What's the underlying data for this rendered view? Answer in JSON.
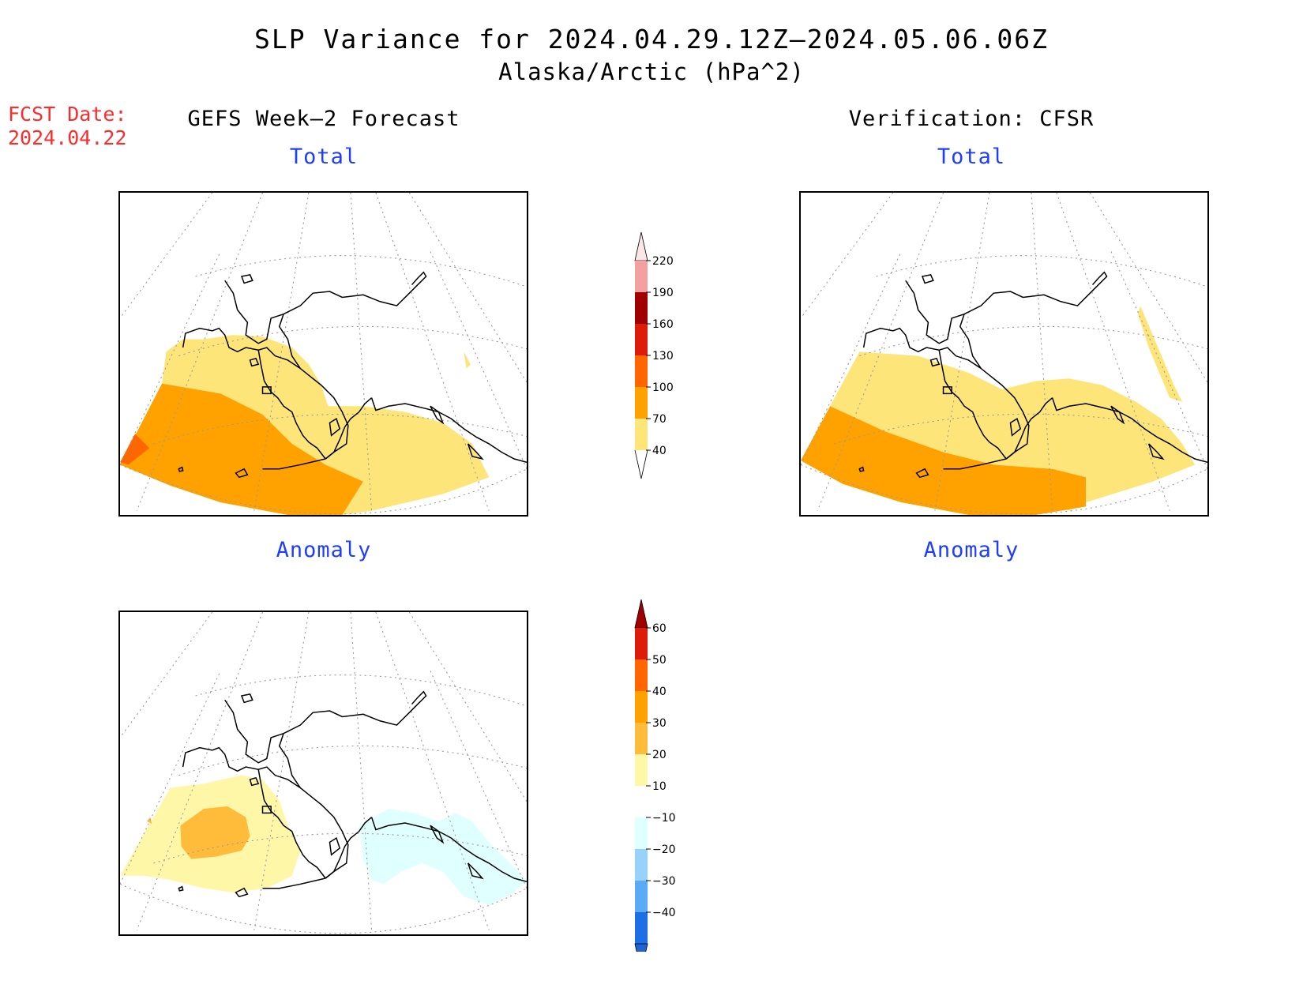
{
  "header": {
    "title": "SLP Variance for 2024.04.29.12Z–2024.05.06.06Z",
    "subtitle": "Alaska/Arctic (hPa^2)"
  },
  "fcst": {
    "label": "FCST Date:",
    "date": "2024.04.22"
  },
  "panels": {
    "left_heading": "GEFS Week–2 Forecast",
    "right_heading": "Verification: CFSR",
    "top_left_title": "Total",
    "top_right_title": "Total",
    "bottom_left_title": "Anomaly",
    "bottom_right_title": "Anomaly"
  },
  "total_colorbar": {
    "labels": [
      "220",
      "190",
      "160",
      "130",
      "100",
      "70",
      "40"
    ],
    "colors": [
      "#fde6e6",
      "#f2a0a0",
      "#a00000",
      "#dd1c0a",
      "#ff6600",
      "#ffa200",
      "#fde57a",
      "#ffffff"
    ]
  },
  "anomaly_colorbar": {
    "labels": [
      "60",
      "50",
      "40",
      "30",
      "20",
      "10",
      "−10",
      "−20",
      "−30",
      "−40"
    ],
    "colors": [
      "#a00000",
      "#dd1c0a",
      "#ff6600",
      "#ffa200",
      "#ffbb3a",
      "#fff7a8",
      "#ffffff",
      "#e0ffff",
      "#96d2fa",
      "#5aaaf5",
      "#1e6ee6",
      "#1e64d2"
    ]
  },
  "colors": {
    "accent_blue": "#1f3dff",
    "fcst_red": "#ff2a2a"
  }
}
